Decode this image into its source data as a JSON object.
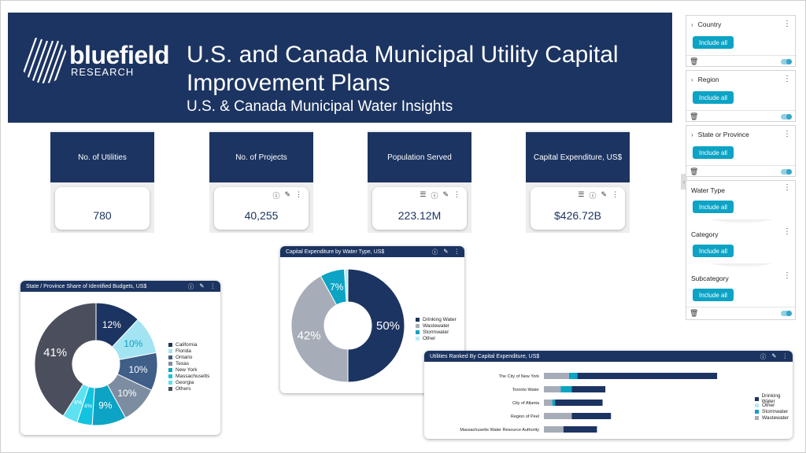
{
  "header": {
    "logo_word": "bluefield",
    "logo_sub": "RESEARCH",
    "title": "U.S. and Canada Municipal Utility Capital Improvement Plans",
    "subtitle": "U.S. & Canada Municipal Water Insights"
  },
  "kpis": [
    {
      "label": "No. of Utilities",
      "value": "780"
    },
    {
      "label": "No. of Projects",
      "value": "40,255"
    },
    {
      "label": "Population Served",
      "value": "223.12M"
    },
    {
      "label": "Capital Expenditure, US$",
      "value": "$426.72B"
    }
  ],
  "icons": {
    "info": "info-icon",
    "edit": "pencil-icon",
    "more": "more-icon",
    "drill": "layers-icon"
  },
  "colors": {
    "navy": "#1c3461",
    "teal": "#0ca3c4",
    "gray": "#a6adb8"
  },
  "state_share": {
    "title": "State / Province Share of Identified Budgets, US$",
    "labels": [
      "12%",
      "10%",
      "10%",
      "10%",
      "9%",
      "4%",
      "4%",
      "41%"
    ],
    "legend": [
      "California",
      "Florida",
      "Ontario",
      "Texas",
      "New York",
      "Massachusetts",
      "Georgia",
      "Others"
    ]
  },
  "water_type": {
    "title": "Capital Expenditure by Water Type, US$",
    "labels": [
      "50%",
      "42%",
      "7%"
    ],
    "legend": [
      "Drinking Water",
      "Wastewater",
      "Stormwater",
      "Other"
    ]
  },
  "ranked": {
    "title": "Utilities Ranked By Capital Expenditure, US$",
    "utilities": [
      "The City of New York",
      "Toronto Water",
      "City of Atlanta",
      "Region of Peel",
      "Massachusetts Water Resource Authority"
    ],
    "legend": [
      "Drinking Water",
      "Other",
      "Stormwater",
      "Wastewater"
    ]
  },
  "chart_data": [
    {
      "type": "pie",
      "title": "State / Province Share of Identified Budgets, US$",
      "categories": [
        "California",
        "Florida",
        "Ontario",
        "Texas",
        "New York",
        "Massachusetts",
        "Georgia",
        "Others"
      ],
      "values": [
        12,
        10,
        10,
        10,
        9,
        4,
        4,
        41
      ],
      "colors": [
        "#1c3461",
        "#a3e4f2",
        "#3f5e88",
        "#7d8da1",
        "#0ca3c4",
        "#12c3e0",
        "#5ee1f0",
        "#4b4f5d"
      ],
      "legend": "right"
    },
    {
      "type": "pie",
      "title": "Capital Expenditure by Water Type, US$",
      "categories": [
        "Drinking Water",
        "Wastewater",
        "Stormwater",
        "Other"
      ],
      "values": [
        50,
        42,
        7,
        1
      ],
      "colors": [
        "#1c3461",
        "#a6adb8",
        "#0ca3c4",
        "#b8ecf6"
      ],
      "legend": "right"
    },
    {
      "type": "bar",
      "title": "Utilities Ranked By Capital Expenditure, US$",
      "orientation": "horizontal",
      "stacked": true,
      "categories": [
        "The City of New York",
        "Toronto Water",
        "City of Atlanta",
        "Region of Peel",
        "Massachusetts Water Resource Authority"
      ],
      "series": [
        {
          "name": "Wastewater",
          "color": "#a6adb8",
          "values": [
            9,
            6,
            3,
            10,
            7
          ]
        },
        {
          "name": "Stormwater",
          "color": "#0ca3c4",
          "values": [
            3,
            4,
            1,
            0,
            0
          ]
        },
        {
          "name": "Other",
          "color": "#b8ecf6",
          "values": [
            0,
            0,
            0,
            0,
            0
          ]
        },
        {
          "name": "Drinking Water",
          "color": "#1c3461",
          "values": [
            50,
            12,
            17,
            14,
            12
          ]
        }
      ],
      "legend": "right"
    }
  ]
}
